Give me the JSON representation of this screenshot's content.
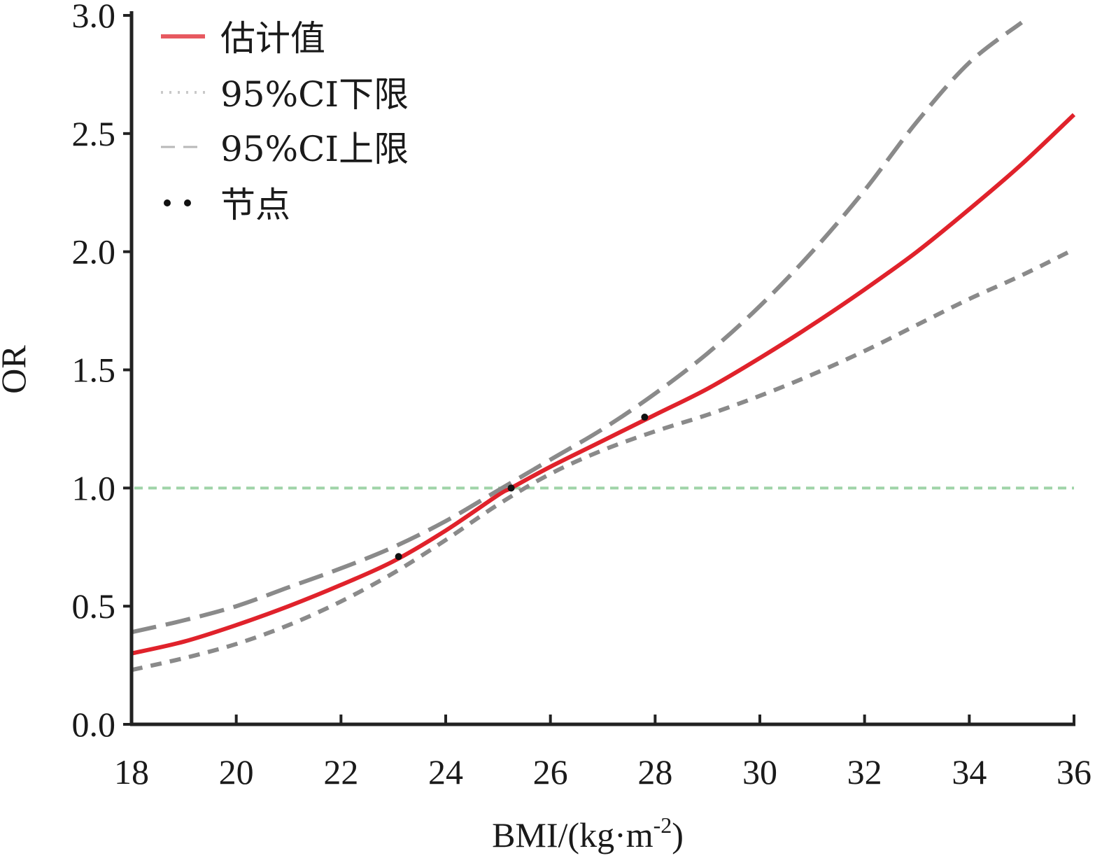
{
  "chart_data": {
    "type": "line",
    "xlabel": "BMI/(kg·m",
    "xlabel_sup": "-2",
    "xlabel_close": ")",
    "ylabel": "OR",
    "xlim": [
      18,
      36
    ],
    "ylim": [
      0,
      3.0
    ],
    "xticks": [
      18,
      20,
      22,
      24,
      26,
      28,
      30,
      32,
      34,
      36
    ],
    "yticks": [
      "0.0",
      "0.5",
      "1.0",
      "1.5",
      "2.0",
      "2.5",
      "3.0"
    ],
    "reference_line": {
      "y": 1.0,
      "color": "#9fd4a8"
    },
    "legend": {
      "position": "top-left",
      "entries": [
        {
          "label": "估计值",
          "style": "solid",
          "color": "#e0222b"
        },
        {
          "label": "95%CI下限",
          "style": "dotted",
          "color": "#c9c9c9"
        },
        {
          "label": "95%CI上限",
          "style": "dashed",
          "color": "#b8b8b8"
        },
        {
          "label": "节点",
          "style": "points",
          "color": "#111111"
        }
      ]
    },
    "series": [
      {
        "name": "估计值",
        "color": "#e0222b",
        "style": "solid",
        "x": [
          18,
          19,
          20,
          21,
          22,
          23,
          24,
          25,
          25.25,
          26,
          27,
          28,
          29,
          30,
          31,
          32,
          33,
          34,
          35,
          36
        ],
        "y": [
          0.3,
          0.35,
          0.42,
          0.5,
          0.59,
          0.69,
          0.82,
          0.97,
          1.0,
          1.09,
          1.2,
          1.31,
          1.42,
          1.55,
          1.69,
          1.84,
          2.0,
          2.18,
          2.37,
          2.58
        ]
      },
      {
        "name": "95%CI下限",
        "color": "#8a8a8a",
        "style": "dashed-short",
        "x": [
          18,
          19,
          20,
          21,
          22,
          23,
          24,
          25,
          26,
          27,
          28,
          29,
          30,
          31,
          32,
          33,
          34,
          35,
          36
        ],
        "y": [
          0.23,
          0.28,
          0.34,
          0.42,
          0.52,
          0.64,
          0.78,
          0.93,
          1.06,
          1.16,
          1.24,
          1.31,
          1.39,
          1.48,
          1.58,
          1.69,
          1.8,
          1.9,
          2.01
        ]
      },
      {
        "name": "95%CI上限",
        "color": "#8a8a8a",
        "style": "dashed-long",
        "x": [
          18,
          19,
          20,
          21,
          22,
          23,
          24,
          25,
          26,
          27,
          28,
          29,
          30,
          31,
          32,
          33,
          34,
          35
        ],
        "y": [
          0.39,
          0.44,
          0.5,
          0.58,
          0.66,
          0.75,
          0.86,
          0.99,
          1.12,
          1.25,
          1.4,
          1.57,
          1.77,
          2.0,
          2.26,
          2.55,
          2.8,
          2.97
        ]
      }
    ],
    "knots": {
      "x": [
        23.1,
        25.25,
        27.8
      ],
      "y": [
        0.71,
        1.0,
        1.3
      ]
    }
  }
}
